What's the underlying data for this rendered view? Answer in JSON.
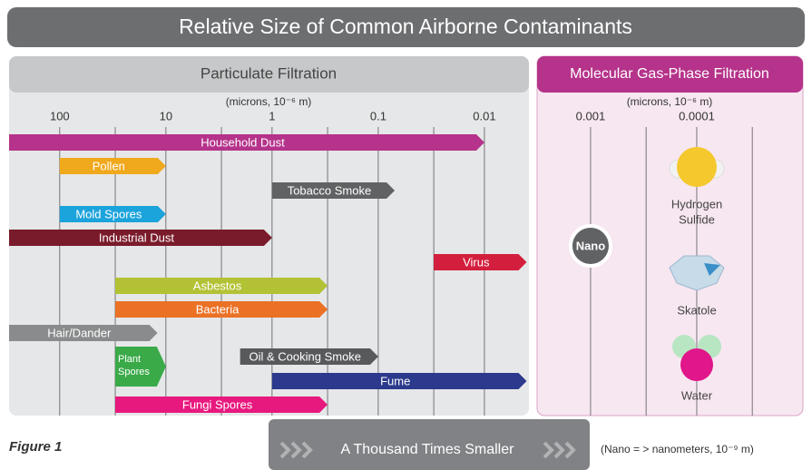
{
  "chart_data": {
    "type": "range-bar",
    "title": "Relative Size of Common Airborne Contaminants",
    "panels": [
      "Particulate Filtration",
      "Molecular Gas-Phase Filtration"
    ],
    "x_label": "(microns, 10⁻⁶ m)",
    "log_x": true,
    "xlim": [
      300,
      1e-05
    ],
    "xticks": [
      100,
      10,
      1,
      0.1,
      0.01,
      0.001,
      0.0001
    ],
    "minor_xticks": [
      30,
      3,
      0.3,
      0.03,
      0.0003,
      3e-05
    ],
    "grid": true,
    "bars": [
      {
        "name": "Household Dust",
        "color": "#b5338a",
        "range": [
          300,
          0.01
        ]
      },
      {
        "name": "Pollen",
        "color": "#f0a81c",
        "range": [
          100,
          10
        ]
      },
      {
        "name": "Tobacco Smoke",
        "color": "#616263",
        "range": [
          1,
          0.07
        ]
      },
      {
        "name": "Mold Spores",
        "color": "#1ba3dc",
        "range": [
          100,
          10
        ]
      },
      {
        "name": "Industrial Dust",
        "color": "#7a1b2b",
        "range": [
          300,
          1
        ]
      },
      {
        "name": "Virus",
        "color": "#d31f3d",
        "range": [
          0.03,
          0.004
        ]
      },
      {
        "name": "Asbestos",
        "color": "#b3c234",
        "range": [
          30,
          0.3
        ]
      },
      {
        "name": "Bacteria",
        "color": "#eb7125",
        "range": [
          30,
          0.3
        ]
      },
      {
        "name": "Hair/Dander",
        "color": "#8a8b8c",
        "range": [
          300,
          12
        ]
      },
      {
        "name": "Plant Spores",
        "color": "#3aaa49",
        "range": [
          30,
          10
        ]
      },
      {
        "name": "Oil & Cooking Smoke",
        "color": "#58595b",
        "range": [
          2,
          0.1
        ]
      },
      {
        "name": "Fume",
        "color": "#2b3a8c",
        "range": [
          1,
          0.004
        ]
      },
      {
        "name": "Fungi Spores",
        "color": "#e8197e",
        "range": [
          30,
          0.3
        ]
      }
    ],
    "nano_marker": {
      "label": "Nano",
      "value": 0.001
    },
    "molecules": [
      {
        "lines": [
          "Hydrogen",
          "Sulfide"
        ]
      },
      {
        "lines": [
          "Skatole"
        ]
      },
      {
        "lines": [
          "Water"
        ]
      }
    ],
    "figure_label": "Figure 1",
    "banner": "A Thousand Times Smaller",
    "footnote": "(Nano = > nanometers, 10⁻⁹ m)"
  }
}
